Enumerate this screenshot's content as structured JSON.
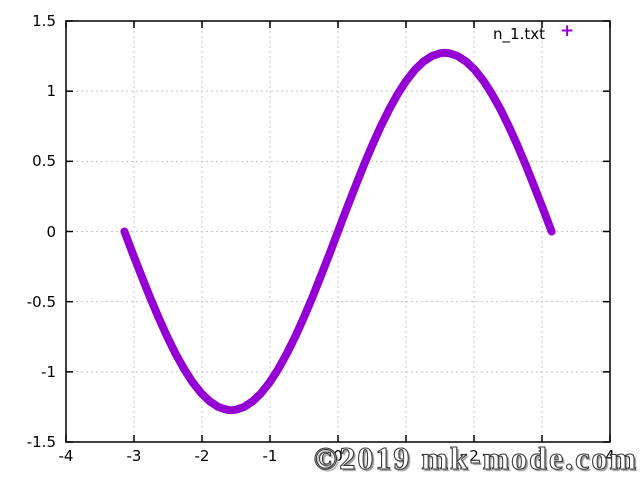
{
  "chart": {
    "legend": {
      "label": "n_1.txt",
      "marker": "+"
    },
    "watermark": "©2019 mk-mode.com",
    "colors": {
      "series": "#9400d3",
      "grid": "#c4c4c4",
      "axis": "#000000",
      "watermark_fill": "#ffffff",
      "watermark_outline": "#3a3a3a"
    }
  },
  "chart_data": {
    "type": "line",
    "title": "",
    "xlabel": "",
    "ylabel": "",
    "xlim": [
      -4,
      4
    ],
    "ylim": [
      -1.5,
      1.5
    ],
    "x_ticks": [
      -4,
      -3,
      -2,
      -1,
      0,
      1,
      2,
      3,
      4
    ],
    "y_ticks": [
      -1.5,
      -1,
      -0.5,
      0,
      0.5,
      1,
      1.5
    ],
    "grid": true,
    "legend_position": "top-right",
    "series": [
      {
        "name": "n_1.txt",
        "color": "#9400d3",
        "style": "dense-plus-points",
        "description": "First Fourier term y = (4/pi)*sin(x) plotted from -pi to pi",
        "points": [
          [
            -3.1416,
            0.0
          ],
          [
            -3.0159,
            -0.1596
          ],
          [
            -2.8903,
            -0.3166
          ],
          [
            -2.7646,
            -0.4687
          ],
          [
            -2.6389,
            -0.6134
          ],
          [
            -2.5133,
            -0.7484
          ],
          [
            -2.3876,
            -0.8716
          ],
          [
            -2.2619,
            -0.981
          ],
          [
            -2.1363,
            -1.075
          ],
          [
            -2.0106,
            -1.152
          ],
          [
            -1.885,
            -1.2109
          ],
          [
            -1.7593,
            -1.2507
          ],
          [
            -1.6336,
            -1.2707
          ],
          [
            -1.5708,
            -1.2732
          ],
          [
            -1.508,
            -1.2707
          ],
          [
            -1.3823,
            -1.2507
          ],
          [
            -1.2566,
            -1.2109
          ],
          [
            -1.131,
            -1.152
          ],
          [
            -1.0053,
            -1.075
          ],
          [
            -0.8796,
            -0.981
          ],
          [
            -0.754,
            -0.8716
          ],
          [
            -0.6283,
            -0.7484
          ],
          [
            -0.5027,
            -0.6134
          ],
          [
            -0.377,
            -0.4687
          ],
          [
            -0.2513,
            -0.3166
          ],
          [
            -0.1257,
            -0.1596
          ],
          [
            0.0,
            0.0
          ],
          [
            0.1257,
            0.1596
          ],
          [
            0.2513,
            0.3166
          ],
          [
            0.377,
            0.4687
          ],
          [
            0.5027,
            0.6134
          ],
          [
            0.6283,
            0.7484
          ],
          [
            0.754,
            0.8716
          ],
          [
            0.8796,
            0.981
          ],
          [
            1.0053,
            1.075
          ],
          [
            1.131,
            1.152
          ],
          [
            1.2566,
            1.2109
          ],
          [
            1.3823,
            1.2507
          ],
          [
            1.508,
            1.2707
          ],
          [
            1.5708,
            1.2732
          ],
          [
            1.6336,
            1.2707
          ],
          [
            1.7593,
            1.2507
          ],
          [
            1.885,
            1.2109
          ],
          [
            2.0106,
            1.152
          ],
          [
            2.1363,
            1.075
          ],
          [
            2.2619,
            0.981
          ],
          [
            2.3876,
            0.8716
          ],
          [
            2.5133,
            0.7484
          ],
          [
            2.6389,
            0.6134
          ],
          [
            2.7646,
            0.4687
          ],
          [
            2.8903,
            0.3166
          ],
          [
            3.0159,
            0.1596
          ],
          [
            3.1416,
            0.0
          ]
        ]
      }
    ]
  }
}
